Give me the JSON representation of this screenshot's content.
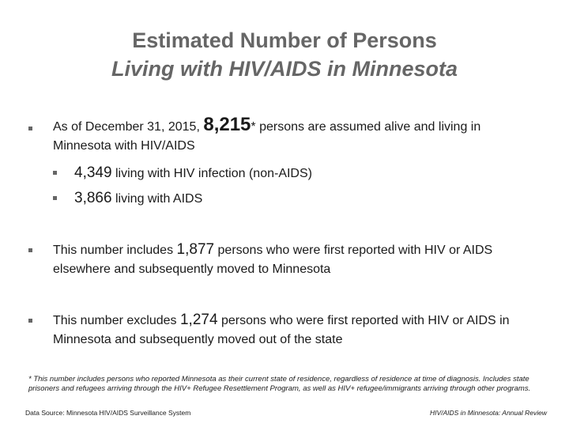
{
  "title": {
    "line1": "Estimated Number of Persons",
    "line2": "Living with HIV/AIDS in Minnesota"
  },
  "bullets": [
    {
      "before": "As of December 31, 2015,",
      "number": "8,215",
      "mark": "*",
      "after": "persons are assumed alive and living in Minnesota with HIV/AIDS",
      "sub": [
        {
          "number": "4,349",
          "text": "living with HIV infection (non-AIDS)"
        },
        {
          "number": "3,866",
          "text": "living with AIDS"
        }
      ]
    },
    {
      "before": "This number includes",
      "number": "1,877",
      "after": "persons who were first reported with HIV or AIDS elsewhere and subsequently moved to Minnesota"
    },
    {
      "before": "This number excludes",
      "number": "1,274",
      "after": "persons who were first reported with HIV or AIDS in Minnesota and subsequently moved out of the state"
    }
  ],
  "footnote": "* This number includes persons who reported Minnesota as their current state of residence, regardless of residence at time of diagnosis. Includes state prisoners and refugees arriving through the HIV+ Refugee Resettlement Program, as well as HIV+ refugee/immigrants arriving through other programs.",
  "source": {
    "left": "Data Source: Minnesota HIV/AIDS Surveillance System",
    "right": "HIV/AIDS in Minnesota: Annual Review"
  }
}
